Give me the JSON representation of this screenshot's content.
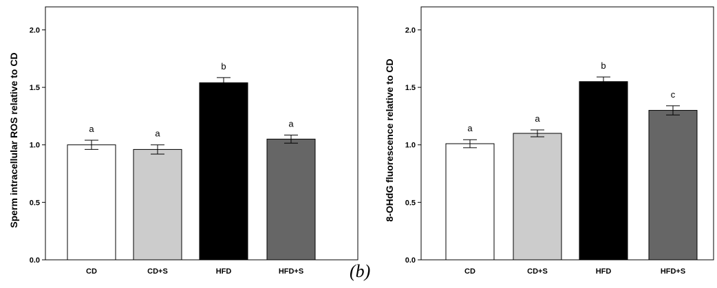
{
  "panel_label": "(b)",
  "chart_data": [
    {
      "type": "bar",
      "categories": [
        "CD",
        "CD+S",
        "HFD",
        "HFD+S"
      ],
      "values": [
        1.0,
        0.96,
        1.54,
        1.05
      ],
      "errors": [
        0.04,
        0.04,
        0.045,
        0.035
      ],
      "significance": [
        "a",
        "a",
        "b",
        "a"
      ],
      "colors": [
        "#ffffff",
        "#cccccc",
        "#000000",
        "#666666"
      ],
      "ylabel": "Sperm intracellular ROS relative to CD",
      "ylim": [
        0,
        2.2
      ],
      "yticks": [
        "0.0",
        "0.5",
        "1.0",
        "1.5",
        "2.0"
      ],
      "ytick_values": [
        0,
        0.5,
        1.0,
        1.5,
        2.0
      ],
      "grid": false
    },
    {
      "type": "bar",
      "categories": [
        "CD",
        "CD+S",
        "HFD",
        "HFD+S"
      ],
      "values": [
        1.01,
        1.1,
        1.55,
        1.3
      ],
      "errors": [
        0.035,
        0.03,
        0.04,
        0.04
      ],
      "significance": [
        "a",
        "a",
        "b",
        "c"
      ],
      "colors": [
        "#ffffff",
        "#cccccc",
        "#000000",
        "#666666"
      ],
      "ylabel": "8-OHdG fluorescence relative to CD",
      "ylim": [
        0,
        2.2
      ],
      "yticks": [
        "0.0",
        "0.5",
        "1.0",
        "1.5",
        "2.0"
      ],
      "ytick_values": [
        0,
        0.5,
        1.0,
        1.5,
        2.0
      ],
      "grid": false
    }
  ]
}
